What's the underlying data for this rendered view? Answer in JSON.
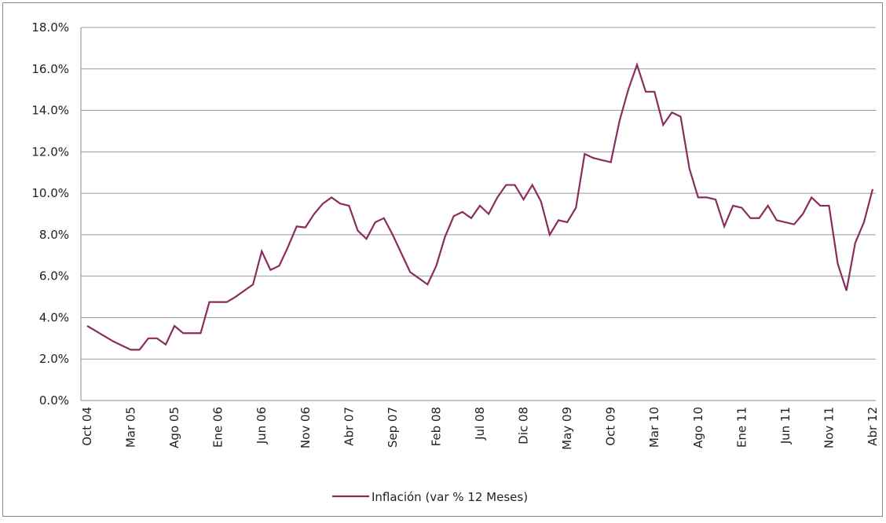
{
  "chart_data": {
    "type": "line",
    "categories": [
      "Oct 04",
      null,
      null,
      null,
      null,
      "Mar 05",
      null,
      null,
      null,
      null,
      "Ago 05",
      null,
      null,
      null,
      null,
      "Ene 06",
      null,
      null,
      null,
      null,
      "Jun 06",
      null,
      null,
      null,
      null,
      "Nov 06",
      null,
      null,
      null,
      null,
      "Abr 07",
      null,
      null,
      null,
      null,
      "Sep 07",
      null,
      null,
      null,
      null,
      "Feb 08",
      null,
      null,
      null,
      null,
      "Jul 08",
      null,
      null,
      null,
      null,
      "Dic 08",
      null,
      null,
      null,
      null,
      "May 09",
      null,
      null,
      null,
      null,
      "Oct 09",
      null,
      null,
      null,
      null,
      "Mar 10",
      null,
      null,
      null,
      null,
      "Ago 10",
      null,
      null,
      null,
      null,
      "Ene 11",
      null,
      null,
      null,
      null,
      "Jun 11",
      null,
      null,
      null,
      null,
      "Nov 11",
      null,
      null,
      null,
      null,
      "Abr 12"
    ],
    "series": [
      {
        "name": "Inflación (var % 12 Meses)",
        "color": "#8b2c5e",
        "values": [
          3.6,
          3.35,
          3.1,
          2.85,
          2.65,
          2.45,
          2.45,
          3.0,
          3.0,
          2.7,
          3.6,
          3.25,
          3.25,
          3.25,
          4.75,
          4.75,
          4.75,
          5.0,
          5.3,
          5.6,
          7.2,
          6.3,
          6.5,
          7.4,
          8.4,
          8.35,
          9.0,
          9.5,
          9.8,
          9.5,
          9.4,
          8.2,
          7.8,
          8.6,
          8.8,
          8.0,
          7.1,
          6.2,
          5.9,
          5.6,
          6.5,
          7.9,
          8.9,
          9.1,
          8.8,
          9.4,
          9.0,
          9.8,
          10.4,
          10.4,
          9.7,
          10.4,
          9.6,
          8.0,
          8.7,
          8.6,
          9.3,
          11.9,
          11.7,
          11.6,
          11.5,
          13.5,
          15.0,
          16.2,
          14.9,
          14.9,
          13.3,
          13.9,
          13.7,
          11.2,
          9.8,
          9.8,
          9.7,
          8.4,
          9.4,
          9.3,
          8.8,
          8.8,
          9.4,
          8.7,
          8.6,
          8.5,
          9.0,
          9.8,
          9.4,
          9.4,
          6.6,
          5.3,
          7.6,
          8.6,
          10.2
        ]
      }
    ],
    "ylim": [
      0,
      18
    ],
    "yticks": [
      {
        "value": 0,
        "label": "0.0%"
      },
      {
        "value": 2,
        "label": "2.0%"
      },
      {
        "value": 4,
        "label": "4.0%"
      },
      {
        "value": 6,
        "label": "6.0%"
      },
      {
        "value": 8,
        "label": "8.0%"
      },
      {
        "value": 10,
        "label": "10.0%"
      },
      {
        "value": 12,
        "label": "12.0%"
      },
      {
        "value": 14,
        "label": "14.0%"
      },
      {
        "value": 16,
        "label": "16.0%"
      },
      {
        "value": 18,
        "label": "18.0%"
      }
    ],
    "grid": true,
    "legend": "bottom"
  }
}
